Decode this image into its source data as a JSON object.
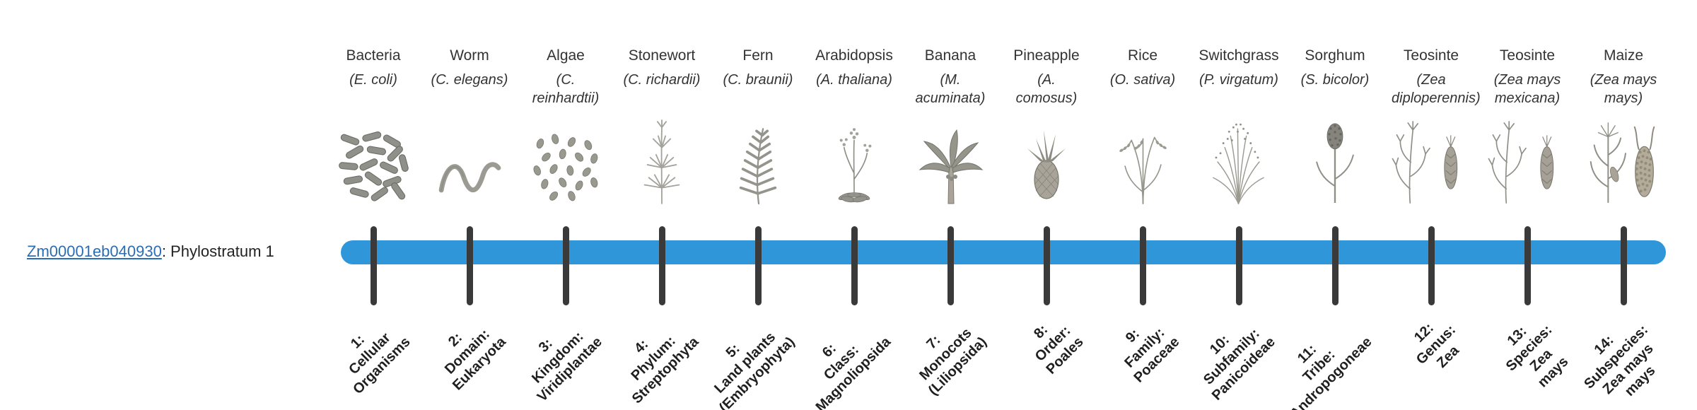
{
  "gene": {
    "id": "Zm00001eb040930",
    "suffix": ": Phylostratum 1"
  },
  "colors": {
    "bar": "#2E96D9",
    "tick": "#3A3A3A",
    "link": "#2A6DB5",
    "text": "#333333",
    "tick_label": "#1F1F1F"
  },
  "organisms": [
    {
      "name": "Bacteria",
      "sci": "(E. coli)",
      "icon": "bacteria",
      "label": [
        "1:",
        "Cellular",
        "Organisms"
      ]
    },
    {
      "name": "Worm",
      "sci": "(C. elegans)",
      "icon": "worm",
      "label": [
        "2:",
        "Domain:",
        "Eukaryota"
      ]
    },
    {
      "name": "Algae",
      "sci": "(C. reinhardtii)",
      "icon": "algae",
      "label": [
        "3:",
        "Kingdom:",
        "Viridiplantae"
      ]
    },
    {
      "name": "Stonewort",
      "sci": "(C. richardii)",
      "icon": "stonewort",
      "label": [
        "4:",
        "Phylum:",
        "Streptophyta"
      ]
    },
    {
      "name": "Fern",
      "sci": "(C. braunii)",
      "icon": "fern",
      "label": [
        "5:",
        "Land plants",
        "(Embryophyta)"
      ]
    },
    {
      "name": "Arabidopsis",
      "sci": "(A. thaliana)",
      "icon": "arabidopsis",
      "label": [
        "6:",
        "Class:",
        "Magnoliopsida"
      ]
    },
    {
      "name": "Banana",
      "sci": "(M. acuminata)",
      "icon": "banana",
      "label": [
        "7:",
        "Monocots",
        "(Liliopsida)"
      ]
    },
    {
      "name": "Pineapple",
      "sci": "(A. comosus)",
      "icon": "pineapple",
      "label": [
        "8:",
        "Order:",
        "Poales"
      ]
    },
    {
      "name": "Rice",
      "sci": "(O. sativa)",
      "icon": "rice",
      "label": [
        "9:",
        "Family:",
        "Poaceae"
      ]
    },
    {
      "name": "Switchgrass",
      "sci": "(P. virgatum)",
      "icon": "switchgrass",
      "label": [
        "10:",
        "Subfamily:",
        "Panicoideae"
      ]
    },
    {
      "name": "Sorghum",
      "sci": "(S. bicolor)",
      "icon": "sorghum",
      "label": [
        "11:",
        "Tribe:",
        "Andropogoneae"
      ]
    },
    {
      "name": "Teosinte",
      "sci": "(Zea diploperennis)",
      "icon": "teosinte",
      "label": [
        "12:",
        "Genus:",
        "Zea"
      ]
    },
    {
      "name": "Teosinte",
      "sci": "(Zea mays mexicana)",
      "icon": "teosinte",
      "label": [
        "13:",
        "Species:",
        "Zea",
        "mays"
      ]
    },
    {
      "name": "Maize",
      "sci": "(Zea mays mays)",
      "icon": "maize",
      "label": [
        "14:",
        "Subspecies:",
        "Zea mays",
        "mays"
      ]
    }
  ]
}
